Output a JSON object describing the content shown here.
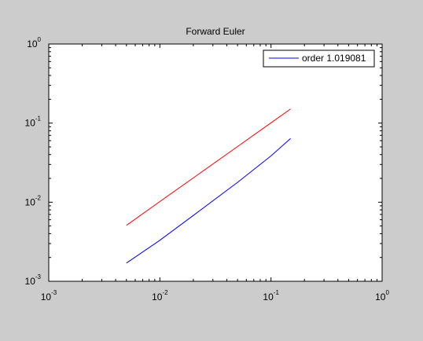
{
  "chart_data": {
    "type": "line",
    "title": "Forward Euler",
    "xlabel": "",
    "ylabel": "",
    "xscale": "log",
    "yscale": "log",
    "xlim": [
      0.001,
      1
    ],
    "ylim": [
      0.001,
      1
    ],
    "grid": false,
    "legend_position": "top-right",
    "x_ticks": [
      {
        "value": 0.001,
        "base": "10",
        "exp": "-3"
      },
      {
        "value": 0.01,
        "base": "10",
        "exp": "-2"
      },
      {
        "value": 0.1,
        "base": "10",
        "exp": "-1"
      },
      {
        "value": 1,
        "base": "10",
        "exp": "0"
      }
    ],
    "y_ticks": [
      {
        "value": 0.001,
        "base": "10",
        "exp": "-3"
      },
      {
        "value": 0.01,
        "base": "10",
        "exp": "-2"
      },
      {
        "value": 0.1,
        "base": "10",
        "exp": "-1"
      },
      {
        "value": 1,
        "base": "10",
        "exp": "0"
      }
    ],
    "series": [
      {
        "color": "#ff0000",
        "x": [
          0.005,
          0.01,
          0.02,
          0.05,
          0.1,
          0.15
        ],
        "y": [
          0.0051,
          0.0102,
          0.0203,
          0.0505,
          0.1008,
          0.151
        ]
      },
      {
        "name": "order 1.019081",
        "color": "#0000ff",
        "x": [
          0.005,
          0.01,
          0.02,
          0.05,
          0.1,
          0.15
        ],
        "y": [
          0.0017,
          0.0033,
          0.0068,
          0.0178,
          0.0385,
          0.064
        ]
      }
    ]
  }
}
